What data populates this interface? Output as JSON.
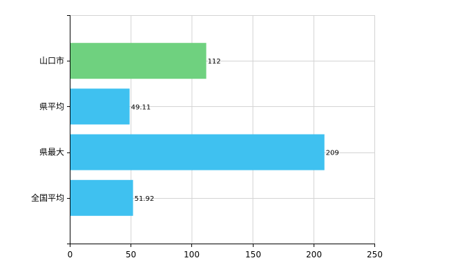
{
  "chart_data": {
    "type": "bar",
    "orientation": "horizontal",
    "categories": [
      "山口市",
      "県平均",
      "県最大",
      "全国平均"
    ],
    "values": [
      112,
      49.11,
      209,
      51.92
    ],
    "value_labels": [
      "112",
      "49.11",
      "209",
      "51.92"
    ],
    "colors": [
      "#6fd17f",
      "#3fc1f0",
      "#3fc1f0",
      "#3fc1f0"
    ],
    "xlim": [
      0,
      250
    ],
    "xticks": [
      0,
      50,
      100,
      150,
      200,
      250
    ],
    "grid": true,
    "legend": "none",
    "title": "",
    "xlabel": "",
    "ylabel": ""
  }
}
